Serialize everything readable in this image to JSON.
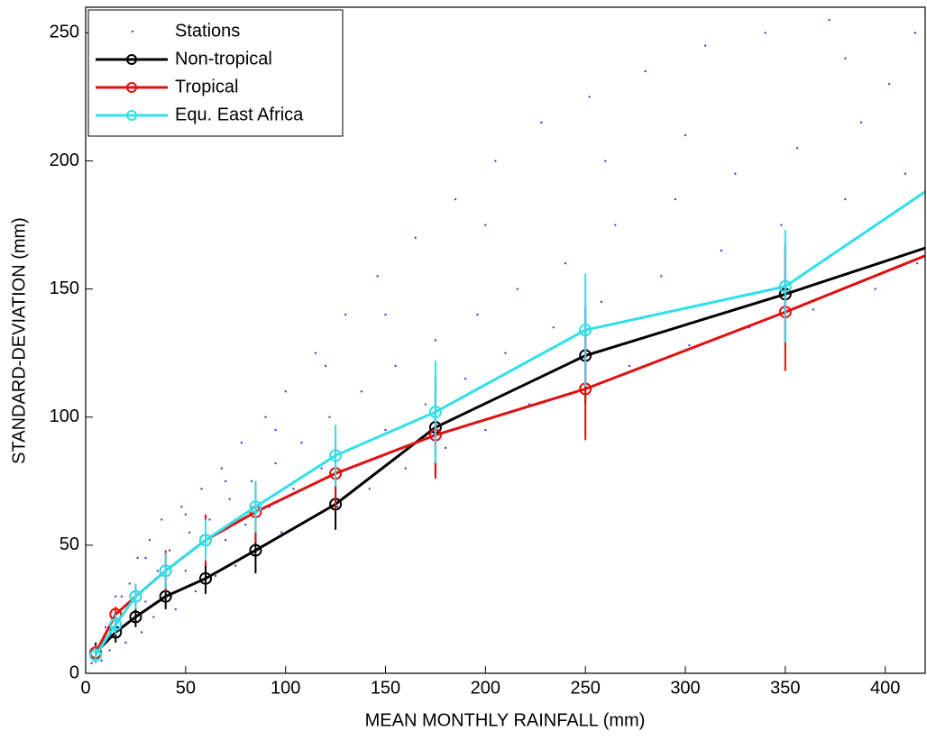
{
  "chart_data": {
    "type": "line",
    "xlabel": "MEAN MONTHLY RAINFALL (mm)",
    "ylabel": "STANDARD-DEVIATION (mm)",
    "xlim": [
      0,
      420
    ],
    "ylim": [
      0,
      260
    ],
    "xticks": [
      0,
      50,
      100,
      150,
      200,
      250,
      300,
      350,
      400
    ],
    "yticks": [
      0,
      50,
      100,
      150,
      200,
      250
    ],
    "legend": "upper left",
    "series": [
      {
        "name": "Stations",
        "type": "scatter",
        "color": "#3030d8",
        "x": [
          3,
          6,
          8,
          10,
          12,
          14,
          16,
          18,
          20,
          22,
          24,
          26,
          28,
          30,
          32,
          34,
          36,
          38,
          40,
          42,
          45,
          48,
          50,
          52,
          55,
          58,
          60,
          62,
          65,
          68,
          70,
          72,
          75,
          78,
          80,
          83,
          86,
          90,
          92,
          95,
          98,
          100,
          104,
          108,
          112,
          115,
          118,
          122,
          126,
          130,
          134,
          138,
          142,
          146,
          150,
          155,
          160,
          165,
          170,
          175,
          180,
          185,
          190,
          196,
          200,
          205,
          210,
          216,
          222,
          228,
          234,
          240,
          246,
          252,
          258,
          265,
          272,
          280,
          288,
          295,
          302,
          310,
          318,
          325,
          332,
          340,
          348,
          356,
          364,
          372,
          380,
          388,
          395,
          402,
          410,
          416,
          415,
          380,
          300,
          260,
          200,
          150,
          120,
          95,
          70,
          50,
          30,
          15
        ],
        "values": [
          4,
          10,
          5,
          18,
          9,
          25,
          14,
          30,
          12,
          35,
          20,
          45,
          16,
          28,
          52,
          22,
          40,
          60,
          30,
          48,
          25,
          65,
          40,
          55,
          32,
          72,
          45,
          60,
          38,
          80,
          52,
          68,
          42,
          90,
          58,
          75,
          48,
          100,
          65,
          82,
          55,
          110,
          72,
          90,
          60,
          125,
          80,
          100,
          65,
          140,
          88,
          110,
          72,
          155,
          95,
          120,
          80,
          170,
          105,
          130,
          88,
          185,
          115,
          140,
          95,
          200,
          125,
          150,
          105,
          215,
          135,
          160,
          110,
          225,
          145,
          175,
          120,
          235,
          155,
          185,
          128,
          245,
          165,
          195,
          135,
          250,
          175,
          205,
          142,
          255,
          185,
          215,
          150,
          230,
          195,
          160,
          250,
          240,
          210,
          200,
          175,
          140,
          120,
          95,
          75,
          62,
          45,
          30
        ]
      },
      {
        "name": "Non-tropical",
        "color": "#000000",
        "x": [
          5,
          15,
          25,
          40,
          60,
          85,
          125,
          175,
          250,
          350,
          420
        ],
        "values": [
          8,
          16,
          22,
          30,
          37,
          48,
          66,
          96,
          124,
          148,
          166
        ],
        "errors": [
          4,
          4,
          4,
          5,
          6,
          9,
          10,
          19,
          19,
          20,
          null
        ]
      },
      {
        "name": "Tropical",
        "color": "#e01010",
        "x": [
          5,
          15,
          25,
          40,
          60,
          85,
          125,
          175,
          250,
          350,
          420
        ],
        "values": [
          8,
          23,
          30,
          40,
          52,
          63,
          78,
          93,
          111,
          141,
          163
        ],
        "errors": [
          3,
          3,
          5,
          8,
          10,
          12,
          14,
          17,
          20,
          23,
          null
        ]
      },
      {
        "name": "Equ. East Africa",
        "color": "#30e0e8",
        "x": [
          5,
          15,
          25,
          40,
          60,
          85,
          125,
          175,
          250,
          350,
          420
        ],
        "values": [
          7,
          19,
          30,
          40,
          52,
          65,
          85,
          102,
          134,
          151,
          188
        ],
        "errors": [
          3,
          4,
          5,
          7,
          8,
          10,
          12,
          20,
          22,
          22,
          null
        ]
      }
    ]
  }
}
